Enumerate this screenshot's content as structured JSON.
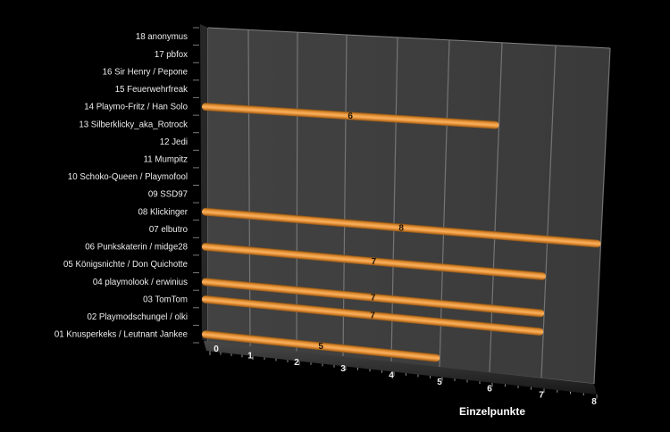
{
  "chart_data": {
    "type": "bar",
    "variant": "3d-horizontal-cylinder",
    "title": "",
    "xlabel": "Einzelpunkte",
    "xlim": [
      0,
      8
    ],
    "x_ticks": [
      "0",
      "1",
      "2",
      "3",
      "4",
      "5",
      "6",
      "7",
      "8"
    ],
    "grid": true,
    "legend": false,
    "categories": [
      "18 anonymus",
      "17 pbfox",
      "16 Sir Henry / Pepone",
      "15 Feuerwehrfreak",
      "14 Playmo-Fritz / Han Solo",
      "13 Silberklicky_aka_Rotrock",
      "12 Jedi",
      "11 Mumpitz",
      "10 Schoko-Queen / Playmofool",
      "09 SSD97",
      "08 Klickinger",
      "07 elbutro",
      "06 Punkskaterin / midge28",
      "05 Königsnichte / Don Quichotte",
      "04 playmolook / erwinius",
      "03 TomTom",
      "02 Playmodschungel / olki",
      "01 Knusperkeks / Leutnant Jankee"
    ],
    "values": [
      0,
      0,
      0,
      0,
      6,
      0,
      0,
      0,
      0,
      0,
      8,
      0,
      7,
      0,
      7,
      7,
      0,
      5
    ],
    "colors": {
      "background": "#000000",
      "wall": "#3e3e3e",
      "wall_side": "#272727",
      "gridline": "#7b7b7b",
      "bar_mid": "#f4a64f",
      "bar_edge": "#7a4a14",
      "bar_value_text": "#1c1308",
      "label_text": "#ededed",
      "axis_title_text": "#ffffff"
    }
  }
}
